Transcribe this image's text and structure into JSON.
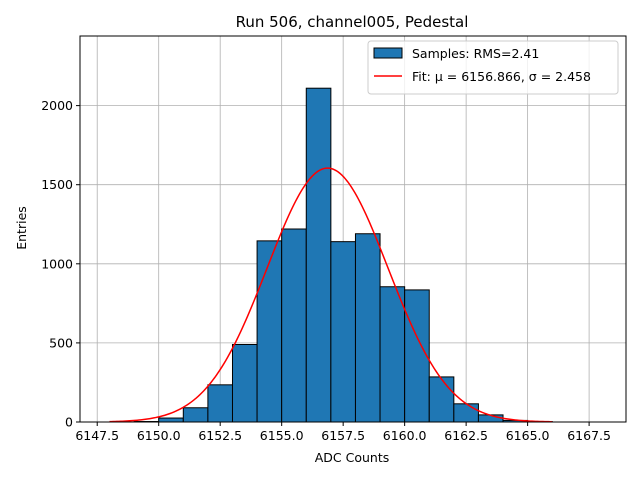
{
  "chart_data": {
    "type": "bar",
    "title": "Run 506, channel005, Pedestal",
    "xlabel": "ADC Counts",
    "ylabel": "Entries",
    "xlim": [
      6146.8,
      6169.0
    ],
    "ylim": [
      0,
      2440
    ],
    "xticks": [
      6147.5,
      6150.0,
      6152.5,
      6155.0,
      6157.5,
      6160.0,
      6162.5,
      6165.0,
      6167.5
    ],
    "xtick_labels": [
      "6147.5",
      "6150.0",
      "6152.5",
      "6155.0",
      "6157.5",
      "6160.0",
      "6162.5",
      "6165.0",
      "6167.5"
    ],
    "yticks": [
      0,
      500,
      1000,
      1500,
      2000
    ],
    "ytick_labels": [
      "0",
      "500",
      "1000",
      "1500",
      "2000"
    ],
    "grid": true,
    "legend_position": "top-right",
    "series": [
      {
        "name": "Samples: RMS=2.41",
        "kind": "histogram",
        "color": "#1f77b4",
        "edge_color": "#000000",
        "bin_edges": [
          6148,
          6149,
          6150,
          6151,
          6152,
          6153,
          6154,
          6155,
          6156,
          6157,
          6158,
          6159,
          6160,
          6161,
          6162,
          6163,
          6164,
          6165,
          6166,
          6167,
          6168
        ],
        "counts": [
          0,
          3,
          25,
          90,
          235,
          490,
          1145,
          1220,
          2110,
          1140,
          1190,
          855,
          835,
          285,
          115,
          45,
          10,
          3,
          0,
          0
        ]
      },
      {
        "name": "Fit: μ = 6156.866, σ = 2.458",
        "kind": "gaussian",
        "color": "#ff0000",
        "mu": 6156.866,
        "sigma": 2.458,
        "amplitude": 1605,
        "x_range": [
          6148,
          6166
        ]
      }
    ]
  }
}
